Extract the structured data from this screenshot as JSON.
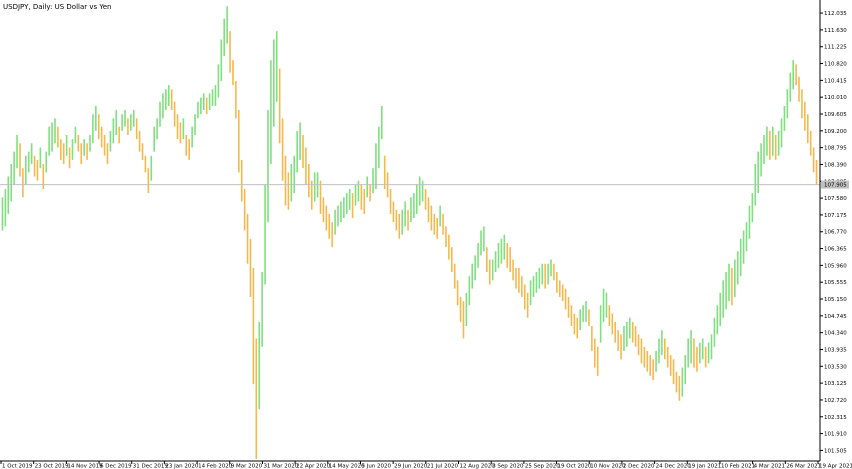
{
  "window": {
    "symbol_title": "USDJPY, Daily: US Dollar vs Yen"
  },
  "colors": {
    "background": "#ffffff",
    "axis": "#000000",
    "bull_bar": "#7ee07e",
    "bear_bar": "#f7b84b",
    "current_price_line": "#c0c0c0",
    "current_price_tag": "#c0c0c0"
  },
  "chart_data": {
    "type": "bar",
    "title": "USDJPY, Daily: US Dollar vs Yen",
    "xlabel": "",
    "ylabel": "",
    "ylim": [
      101.25,
      112.35
    ],
    "grid": false,
    "current_price": "107.905",
    "price_axis_labels": [
      "112.035",
      "111.630",
      "111.225",
      "110.820",
      "110.415",
      "110.010",
      "109.605",
      "109.200",
      "108.795",
      "108.390",
      "107.985",
      "107.580",
      "107.175",
      "106.770",
      "106.365",
      "105.960",
      "105.555",
      "105.150",
      "104.745",
      "104.340",
      "103.935",
      "103.530",
      "103.125",
      "102.720",
      "102.315",
      "101.910",
      "101.505"
    ],
    "date_axis_labels": [
      "1 Oct 2019",
      "23 Oct 2019",
      "14 Nov 2019",
      "6 Dec 2019",
      "31 Dec 2019",
      "23 Jan 2020",
      "14 Feb 2020",
      "9 Mar 2020",
      "31 Mar 2020",
      "22 Apr 2020",
      "14 May 2020",
      "5 Jun 2020",
      "29 Jun 2020",
      "21 Jul 2020",
      "12 Aug 2020",
      "3 Sep 2020",
      "25 Sep 2020",
      "19 Oct 2020",
      "10 Nov 2020",
      "2 Dec 2020",
      "24 Dec 2020",
      "19 Jan 2021",
      "10 Feb 2021",
      "4 Mar 2021",
      "26 Mar 2021",
      "19 Apr 2021"
    ],
    "series": [
      {
        "values": [
          [
            106.8,
            107.6
          ],
          [
            106.9,
            107.8
          ],
          [
            107.2,
            108.1
          ],
          [
            107.5,
            108.4
          ],
          [
            107.9,
            108.7
          ],
          [
            108.3,
            109.1
          ],
          [
            108.1,
            108.9
          ],
          [
            107.6,
            108.3
          ],
          [
            107.9,
            108.6
          ],
          [
            108.2,
            108.7
          ],
          [
            108.4,
            108.9
          ],
          [
            108.1,
            108.6
          ],
          [
            108.0,
            108.5
          ],
          [
            108.3,
            108.8
          ],
          [
            107.8,
            108.4
          ],
          [
            108.2,
            108.7
          ],
          [
            108.6,
            109.3
          ],
          [
            108.7,
            109.4
          ],
          [
            108.9,
            109.5
          ],
          [
            108.8,
            109.3
          ],
          [
            108.5,
            109.0
          ],
          [
            108.4,
            108.9
          ],
          [
            108.6,
            109.1
          ],
          [
            108.3,
            108.8
          ],
          [
            108.5,
            109.0
          ],
          [
            108.9,
            109.3
          ],
          [
            108.7,
            109.1
          ],
          [
            108.4,
            108.9
          ],
          [
            108.6,
            109.0
          ],
          [
            108.5,
            108.9
          ],
          [
            108.7,
            109.1
          ],
          [
            108.9,
            109.6
          ],
          [
            109.2,
            109.8
          ],
          [
            109.0,
            109.6
          ],
          [
            108.8,
            109.3
          ],
          [
            108.6,
            109.1
          ],
          [
            108.4,
            108.9
          ],
          [
            108.7,
            109.2
          ],
          [
            108.9,
            109.5
          ],
          [
            109.1,
            109.7
          ],
          [
            108.9,
            109.3
          ],
          [
            109.2,
            109.6
          ],
          [
            109.3,
            109.7
          ],
          [
            109.1,
            109.5
          ],
          [
            109.2,
            109.6
          ],
          [
            109.3,
            109.7
          ],
          [
            109.0,
            109.5
          ],
          [
            108.7,
            109.2
          ],
          [
            108.5,
            108.9
          ],
          [
            108.2,
            108.6
          ],
          [
            107.7,
            108.3
          ],
          [
            108.0,
            108.6
          ],
          [
            108.7,
            109.3
          ],
          [
            109.0,
            109.5
          ],
          [
            109.3,
            109.9
          ],
          [
            109.5,
            110.1
          ],
          [
            109.7,
            110.2
          ],
          [
            109.8,
            110.3
          ],
          [
            109.7,
            110.2
          ],
          [
            109.3,
            109.9
          ],
          [
            109.0,
            109.6
          ],
          [
            108.9,
            109.4
          ],
          [
            109.0,
            109.5
          ],
          [
            108.6,
            109.1
          ],
          [
            108.5,
            109.0
          ],
          [
            108.8,
            109.3
          ],
          [
            109.1,
            109.6
          ],
          [
            109.5,
            109.9
          ],
          [
            109.6,
            110.0
          ],
          [
            109.7,
            110.1
          ],
          [
            109.6,
            110.0
          ],
          [
            109.7,
            110.1
          ],
          [
            109.8,
            110.2
          ],
          [
            109.8,
            110.3
          ],
          [
            110.0,
            110.8
          ],
          [
            110.4,
            111.4
          ],
          [
            111.0,
            111.9
          ],
          [
            111.3,
            112.2
          ],
          [
            110.6,
            111.6
          ],
          [
            110.3,
            110.9
          ],
          [
            109.5,
            110.4
          ],
          [
            108.2,
            109.7
          ],
          [
            107.5,
            108.5
          ],
          [
            106.8,
            107.8
          ],
          [
            106.0,
            107.2
          ],
          [
            105.2,
            106.6
          ],
          [
            103.1,
            105.9
          ],
          [
            101.3,
            104.2
          ],
          [
            102.5,
            104.6
          ],
          [
            104.0,
            105.8
          ],
          [
            105.5,
            107.9
          ],
          [
            107.0,
            109.7
          ],
          [
            108.4,
            110.9
          ],
          [
            109.3,
            111.4
          ],
          [
            109.9,
            111.6
          ],
          [
            108.9,
            110.7
          ],
          [
            108.0,
            109.5
          ],
          [
            107.4,
            108.6
          ],
          [
            107.3,
            108.2
          ],
          [
            107.5,
            108.4
          ],
          [
            107.7,
            108.6
          ],
          [
            108.2,
            109.2
          ],
          [
            108.5,
            109.4
          ],
          [
            108.3,
            109.1
          ],
          [
            107.9,
            108.8
          ],
          [
            107.6,
            108.4
          ],
          [
            107.3,
            108.0
          ],
          [
            107.5,
            108.2
          ],
          [
            107.6,
            108.2
          ],
          [
            107.2,
            108.0
          ],
          [
            107.0,
            107.6
          ],
          [
            106.8,
            107.4
          ],
          [
            106.6,
            107.2
          ],
          [
            106.4,
            107.0
          ],
          [
            106.7,
            107.3
          ],
          [
            106.9,
            107.4
          ],
          [
            107.0,
            107.5
          ],
          [
            107.1,
            107.6
          ],
          [
            107.2,
            107.7
          ],
          [
            107.3,
            107.8
          ],
          [
            107.1,
            107.7
          ],
          [
            107.4,
            107.9
          ],
          [
            107.5,
            108.0
          ],
          [
            107.3,
            107.9
          ],
          [
            107.2,
            107.8
          ],
          [
            107.6,
            108.1
          ],
          [
            107.5,
            107.9
          ],
          [
            107.7,
            108.3
          ],
          [
            107.8,
            108.9
          ],
          [
            108.3,
            109.3
          ],
          [
            109.0,
            109.8
          ],
          [
            107.8,
            108.6
          ],
          [
            107.6,
            108.2
          ],
          [
            107.2,
            107.8
          ],
          [
            107.0,
            107.5
          ],
          [
            106.8,
            107.3
          ],
          [
            106.6,
            107.2
          ],
          [
            106.7,
            107.3
          ],
          [
            106.9,
            107.5
          ],
          [
            106.8,
            107.3
          ],
          [
            107.0,
            107.6
          ],
          [
            107.1,
            107.7
          ],
          [
            107.2,
            107.9
          ],
          [
            107.4,
            108.1
          ],
          [
            107.5,
            108.0
          ],
          [
            107.3,
            107.8
          ],
          [
            107.0,
            107.6
          ],
          [
            106.8,
            107.4
          ],
          [
            106.7,
            107.2
          ],
          [
            106.6,
            107.1
          ],
          [
            106.9,
            107.4
          ],
          [
            106.7,
            107.2
          ],
          [
            106.4,
            106.9
          ],
          [
            106.1,
            106.7
          ],
          [
            105.8,
            106.4
          ],
          [
            105.4,
            106.0
          ],
          [
            105.0,
            105.6
          ],
          [
            104.6,
            105.2
          ],
          [
            104.2,
            105.1
          ],
          [
            104.5,
            105.3
          ],
          [
            105.0,
            105.7
          ],
          [
            105.4,
            106.0
          ],
          [
            105.6,
            106.2
          ],
          [
            105.9,
            106.5
          ],
          [
            106.2,
            106.8
          ],
          [
            106.3,
            106.9
          ],
          [
            105.8,
            106.4
          ],
          [
            105.5,
            106.1
          ],
          [
            105.6,
            106.1
          ],
          [
            105.8,
            106.3
          ],
          [
            105.9,
            106.5
          ],
          [
            106.0,
            106.6
          ],
          [
            106.1,
            106.7
          ],
          [
            105.9,
            106.5
          ],
          [
            105.8,
            106.4
          ],
          [
            105.6,
            106.1
          ],
          [
            105.4,
            105.9
          ],
          [
            105.3,
            105.9
          ],
          [
            105.2,
            105.7
          ],
          [
            104.9,
            105.5
          ],
          [
            104.7,
            105.3
          ],
          [
            105.0,
            105.6
          ],
          [
            105.2,
            105.7
          ],
          [
            105.3,
            105.8
          ],
          [
            105.4,
            105.9
          ],
          [
            105.5,
            106.0
          ],
          [
            105.4,
            106.0
          ],
          [
            105.5,
            106.0
          ],
          [
            105.7,
            106.1
          ],
          [
            105.6,
            106.0
          ],
          [
            105.3,
            105.8
          ],
          [
            105.2,
            105.6
          ],
          [
            105.1,
            105.5
          ],
          [
            104.9,
            105.4
          ],
          [
            104.7,
            105.2
          ],
          [
            104.5,
            105.0
          ],
          [
            104.3,
            104.8
          ],
          [
            104.2,
            104.7
          ],
          [
            104.4,
            104.9
          ],
          [
            104.6,
            105.0
          ],
          [
            104.6,
            105.1
          ],
          [
            104.5,
            104.9
          ],
          [
            103.9,
            104.5
          ],
          [
            103.5,
            104.2
          ],
          [
            103.3,
            104.0
          ],
          [
            104.1,
            105.0
          ],
          [
            104.6,
            105.4
          ],
          [
            104.7,
            105.3
          ],
          [
            104.5,
            105.0
          ],
          [
            104.3,
            104.8
          ],
          [
            104.1,
            104.6
          ],
          [
            103.9,
            104.4
          ],
          [
            103.7,
            104.3
          ],
          [
            103.9,
            104.5
          ],
          [
            104.0,
            104.6
          ],
          [
            104.2,
            104.7
          ],
          [
            104.1,
            104.6
          ],
          [
            104.0,
            104.5
          ],
          [
            103.8,
            104.3
          ],
          [
            103.6,
            104.2
          ],
          [
            103.5,
            104.0
          ],
          [
            103.4,
            103.9
          ],
          [
            103.3,
            103.8
          ],
          [
            103.2,
            103.7
          ],
          [
            103.4,
            103.9
          ],
          [
            103.6,
            104.2
          ],
          [
            103.8,
            104.4
          ],
          [
            103.7,
            104.2
          ],
          [
            103.5,
            104.0
          ],
          [
            103.3,
            103.8
          ],
          [
            103.1,
            103.7
          ],
          [
            102.9,
            103.4
          ],
          [
            102.7,
            103.3
          ],
          [
            102.8,
            103.5
          ],
          [
            103.1,
            103.8
          ],
          [
            103.5,
            104.2
          ],
          [
            103.6,
            104.4
          ],
          [
            103.5,
            104.2
          ],
          [
            103.4,
            104.0
          ],
          [
            103.6,
            104.1
          ],
          [
            103.7,
            104.2
          ],
          [
            103.5,
            104.0
          ],
          [
            103.6,
            104.1
          ],
          [
            103.7,
            104.3
          ],
          [
            104.0,
            104.7
          ],
          [
            104.3,
            105.0
          ],
          [
            104.5,
            105.3
          ],
          [
            104.7,
            105.6
          ],
          [
            104.9,
            105.8
          ],
          [
            105.1,
            106.0
          ],
          [
            105.0,
            105.9
          ],
          [
            105.2,
            106.1
          ],
          [
            105.5,
            106.3
          ],
          [
            105.7,
            106.6
          ],
          [
            106.0,
            106.8
          ],
          [
            106.3,
            107.0
          ],
          [
            106.6,
            107.4
          ],
          [
            107.0,
            107.7
          ],
          [
            107.4,
            108.4
          ],
          [
            107.7,
            108.7
          ],
          [
            108.1,
            108.9
          ],
          [
            108.4,
            109.1
          ],
          [
            108.6,
            109.3
          ],
          [
            108.5,
            109.2
          ],
          [
            108.6,
            109.3
          ],
          [
            108.5,
            109.1
          ],
          [
            108.6,
            109.2
          ],
          [
            108.8,
            109.5
          ],
          [
            109.2,
            109.8
          ],
          [
            109.5,
            110.2
          ],
          [
            109.9,
            110.6
          ],
          [
            110.2,
            110.9
          ],
          [
            110.3,
            110.8
          ],
          [
            109.9,
            110.5
          ],
          [
            109.5,
            110.2
          ],
          [
            109.2,
            109.9
          ],
          [
            108.9,
            109.6
          ],
          [
            108.6,
            109.2
          ],
          [
            108.2,
            108.8
          ],
          [
            107.9,
            108.5
          ]
        ]
      }
    ]
  }
}
